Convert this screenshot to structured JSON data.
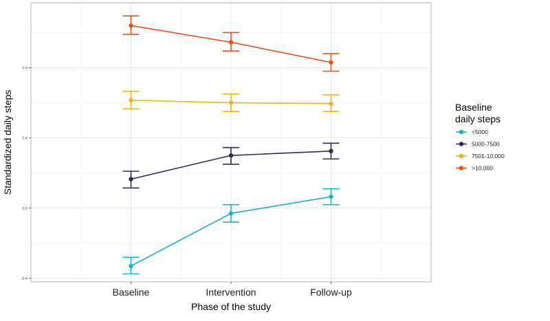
{
  "chart_data": {
    "type": "line",
    "title": "",
    "xlabel": "Phase of the study",
    "ylabel": "Standardized daily steps",
    "categories": [
      "Baseline",
      "Intervention",
      "Follow-up"
    ],
    "y_ticks": [
      -0.4,
      0.0,
      0.4,
      0.8
    ],
    "y_tick_labels": [
      "-0.4",
      "0.0",
      "0.4",
      "0.8"
    ],
    "ylim": [
      -0.42,
      1.17
    ],
    "grid": true,
    "legend": {
      "title_line1": "Baseline",
      "title_line2": "daily steps",
      "placement": "right"
    },
    "series": [
      {
        "name": "<5000",
        "color": "#1BB3BF",
        "values": [
          -0.33,
          -0.03,
          0.065
        ],
        "lower": [
          -0.375,
          -0.08,
          0.02
        ],
        "upper": [
          -0.28,
          0.02,
          0.11
        ]
      },
      {
        "name": "5000-7500",
        "color": "#2A2D4E",
        "values": [
          0.165,
          0.3,
          0.325
        ],
        "lower": [
          0.115,
          0.25,
          0.28
        ],
        "upper": [
          0.21,
          0.345,
          0.37
        ]
      },
      {
        "name": "7501-10,000",
        "color": "#E8B51A",
        "values": [
          0.615,
          0.6,
          0.595
        ],
        "lower": [
          0.565,
          0.55,
          0.55
        ],
        "upper": [
          0.665,
          0.65,
          0.645
        ]
      },
      {
        "name": ">10,000",
        "color": "#F04C1E",
        "values": [
          1.04,
          0.945,
          0.83
        ],
        "lower": [
          0.99,
          0.895,
          0.78
        ],
        "upper": [
          1.095,
          1.0,
          0.88
        ]
      }
    ]
  }
}
